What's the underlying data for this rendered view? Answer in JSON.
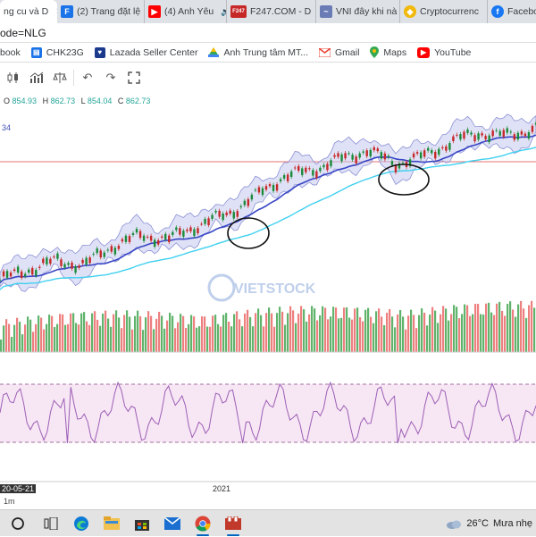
{
  "tabs": [
    {
      "label": "ng cu và D",
      "icon": "chart-icon",
      "color": "#ffffff",
      "active": true
    },
    {
      "label": "(2) Trang đặt lệ",
      "icon": "f-icon",
      "color": "#1a73e8"
    },
    {
      "label": "(4) Anh Yêu",
      "icon": "youtube-icon",
      "color": "#ff0000"
    },
    {
      "label": "F247.COM - D",
      "icon": "f247-icon",
      "color": "#c62828"
    },
    {
      "label": "VNI đây khi nà",
      "icon": "chart-icon",
      "color": "#6a7bb5"
    },
    {
      "label": "Cryptocurrenc",
      "icon": "coin-icon",
      "color": "#f0b90b"
    },
    {
      "label": "Faceboo",
      "icon": "facebook-icon",
      "color": "#1877f2"
    }
  ],
  "address": {
    "url": "ode=NLG"
  },
  "bookmarks": [
    {
      "label": "book",
      "icon": "none"
    },
    {
      "label": "CHK23G",
      "icon": "doc-icon",
      "color": "#1a73e8"
    },
    {
      "label": "Lazada Seller Center",
      "icon": "heart-icon",
      "color": "#1b3a8c"
    },
    {
      "label": "Anh Trung tâm MT...",
      "icon": "drive-icon",
      "color": "#34a853"
    },
    {
      "label": "Gmail",
      "icon": "gmail-icon",
      "color": "#ea4335"
    },
    {
      "label": "Maps",
      "icon": "maps-icon",
      "color": "#34a853"
    },
    {
      "label": "YouTube",
      "icon": "youtube-icon",
      "color": "#ff0000"
    }
  ],
  "ohlc": {
    "o_label": "O",
    "o": "854.93",
    "h_label": "H",
    "h": "862.73",
    "l_label": "L",
    "l": "854.04",
    "c_label": "C",
    "c": "862.73"
  },
  "indicator_value": "34",
  "watermark": "VIETSTOCK",
  "chart_data": {
    "type": "line",
    "series": [
      {
        "values": [
          640,
          655,
          668,
          662,
          690,
          705,
          700,
          720,
          735,
          760,
          790,
          800,
          815,
          830,
          810,
          820,
          842,
          855,
          850,
          862.73
        ]
      }
    ],
    "ylim": [
      600,
      900
    ],
    "grid": true
  },
  "axis": {
    "date_start": "20-05-21",
    "year": "2021"
  },
  "timeframe": "1m",
  "taskbar": {
    "weather_temp": "26°C",
    "weather_text": "Mưa nhẹ"
  }
}
